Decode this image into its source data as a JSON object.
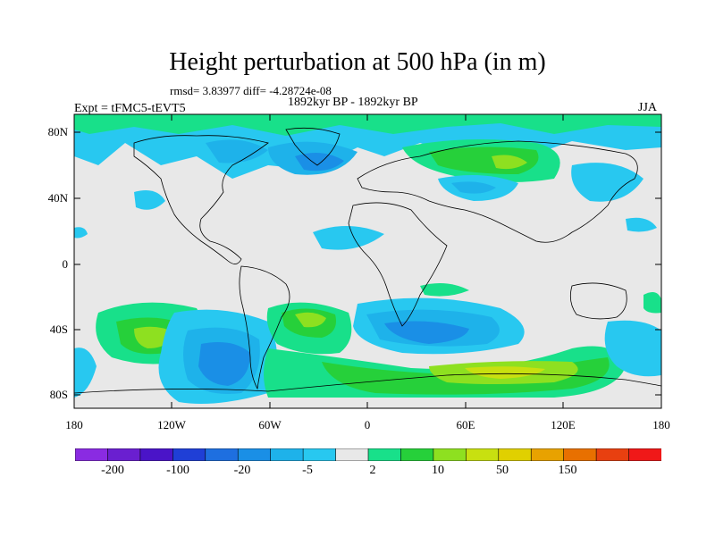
{
  "title": "Height perturbation at 500 hPa (in m)",
  "stats": "rmsd= 3.83977 diff= -4.28724e-08",
  "period": "1892kyr BP - 1892kyr BP",
  "experiment": "Expt = tFMC5-tEVT5",
  "season": "JJA",
  "lat_labels": [
    "80N",
    "40N",
    "0",
    "40S",
    "80S"
  ],
  "lon_labels": [
    "180",
    "120W",
    "60W",
    "0",
    "60E",
    "120E",
    "180"
  ],
  "colorbar": {
    "colors": [
      "#8a2be2",
      "#6a1fd0",
      "#4a14c8",
      "#1f3fd6",
      "#1e6fe0",
      "#1a8fe6",
      "#1eb2ea",
      "#28c8f0",
      "#e8e8e8",
      "#18e08a",
      "#26d03a",
      "#8ee020",
      "#c8e010",
      "#e0d000",
      "#e8a200",
      "#e87000",
      "#e84010",
      "#f01818"
    ],
    "labels": [
      "-200",
      "-100",
      "-20",
      "-5",
      "2",
      "10",
      "50",
      "150"
    ]
  },
  "colors": {
    "background_field": "#e8e8e8",
    "land_outline": "#000000"
  }
}
